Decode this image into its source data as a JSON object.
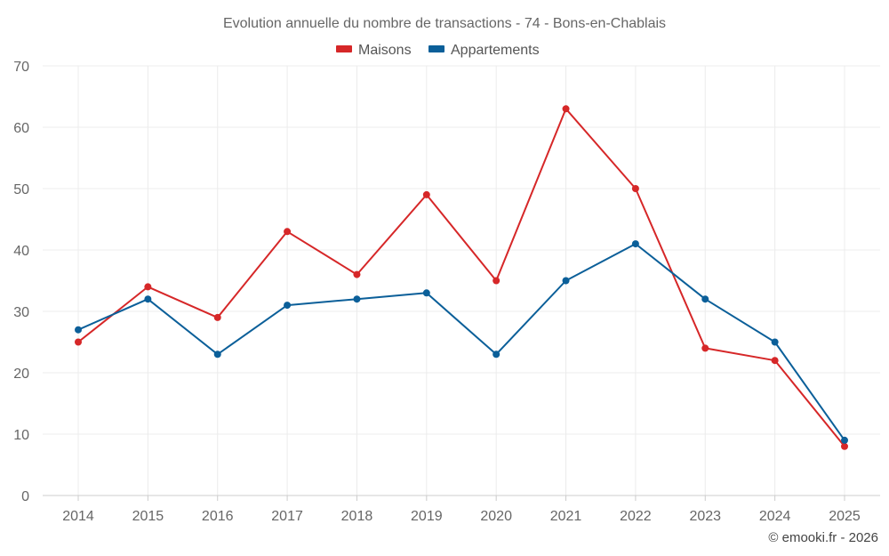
{
  "chart_data": {
    "type": "line",
    "title": "Evolution annuelle du nombre de transactions - 74 - Bons-en-Chablais",
    "categories": [
      "2014",
      "2015",
      "2016",
      "2017",
      "2018",
      "2019",
      "2020",
      "2021",
      "2022",
      "2023",
      "2024",
      "2025"
    ],
    "series": [
      {
        "name": "Maisons",
        "color": "#d62728",
        "values": [
          25,
          34,
          29,
          43,
          36,
          49,
          35,
          63,
          50,
          24,
          22,
          8
        ]
      },
      {
        "name": "Appartements",
        "color": "#0b5f99",
        "values": [
          27,
          32,
          23,
          31,
          32,
          33,
          23,
          35,
          41,
          32,
          25,
          9
        ]
      }
    ],
    "yticks": [
      "0",
      "10",
      "20",
      "30",
      "40",
      "50",
      "60",
      "70"
    ],
    "ylim": [
      0,
      70
    ],
    "xlabel": "",
    "ylabel": "",
    "grid": true,
    "legend_position": "top-center"
  },
  "credit": "© emooki.fr - 2026"
}
